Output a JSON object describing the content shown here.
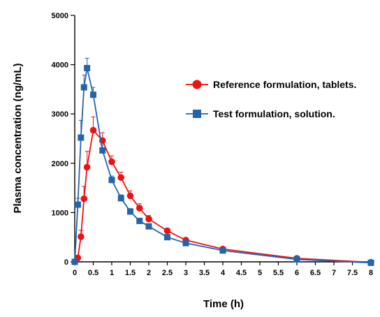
{
  "chart_data": {
    "type": "line",
    "xlabel": "Time (h)",
    "ylabel": "Plasma concentration (ng/mL)",
    "xlim": [
      0,
      8
    ],
    "ylim": [
      0,
      5000
    ],
    "x_ticks": [
      0,
      0.5,
      1,
      1.5,
      2,
      2.5,
      3,
      3.5,
      4,
      4.5,
      5,
      5.5,
      6,
      6.5,
      7,
      7.5,
      8
    ],
    "x_tick_labels": [
      "0",
      "0.5",
      "1",
      "1.5",
      "2",
      "2.5",
      "3",
      "3.5",
      "4",
      "4.5",
      "5",
      "5.5",
      "6",
      "6.5",
      "7",
      "7.5",
      "8"
    ],
    "y_ticks": [
      0,
      1000,
      2000,
      3000,
      4000,
      5000
    ],
    "y_tick_labels": [
      "0",
      "1000",
      "2000",
      "3000",
      "4000",
      "5000"
    ],
    "grid": false,
    "legend_position": "right",
    "series": [
      {
        "name": "Reference formulation, tablets.",
        "color": "#ee1111",
        "marker": "circle",
        "x": [
          0,
          0.083,
          0.167,
          0.25,
          0.333,
          0.5,
          0.75,
          1,
          1.25,
          1.5,
          1.75,
          2,
          2.5,
          3,
          4,
          6,
          8
        ],
        "y": [
          0,
          80,
          510,
          1280,
          1920,
          2670,
          2460,
          2030,
          1710,
          1340,
          1090,
          870,
          630,
          440,
          260,
          70,
          -10
        ],
        "err": [
          0,
          40,
          130,
          250,
          320,
          270,
          160,
          120,
          110,
          100,
          90,
          70,
          50,
          40,
          30,
          20,
          10
        ]
      },
      {
        "name": "Test formulation, solution.",
        "color": "#2166ac",
        "marker": "square",
        "x": [
          0,
          0.083,
          0.167,
          0.25,
          0.333,
          0.5,
          0.75,
          1,
          1.25,
          1.5,
          1.75,
          2,
          2.5,
          3,
          4,
          6,
          8
        ],
        "y": [
          0,
          1160,
          2520,
          3540,
          3930,
          3390,
          2260,
          1660,
          1290,
          1020,
          830,
          720,
          500,
          380,
          230,
          50,
          -20
        ],
        "err": [
          0,
          130,
          350,
          250,
          200,
          150,
          110,
          80,
          70,
          60,
          50,
          40,
          30,
          30,
          20,
          10,
          10
        ]
      }
    ]
  }
}
